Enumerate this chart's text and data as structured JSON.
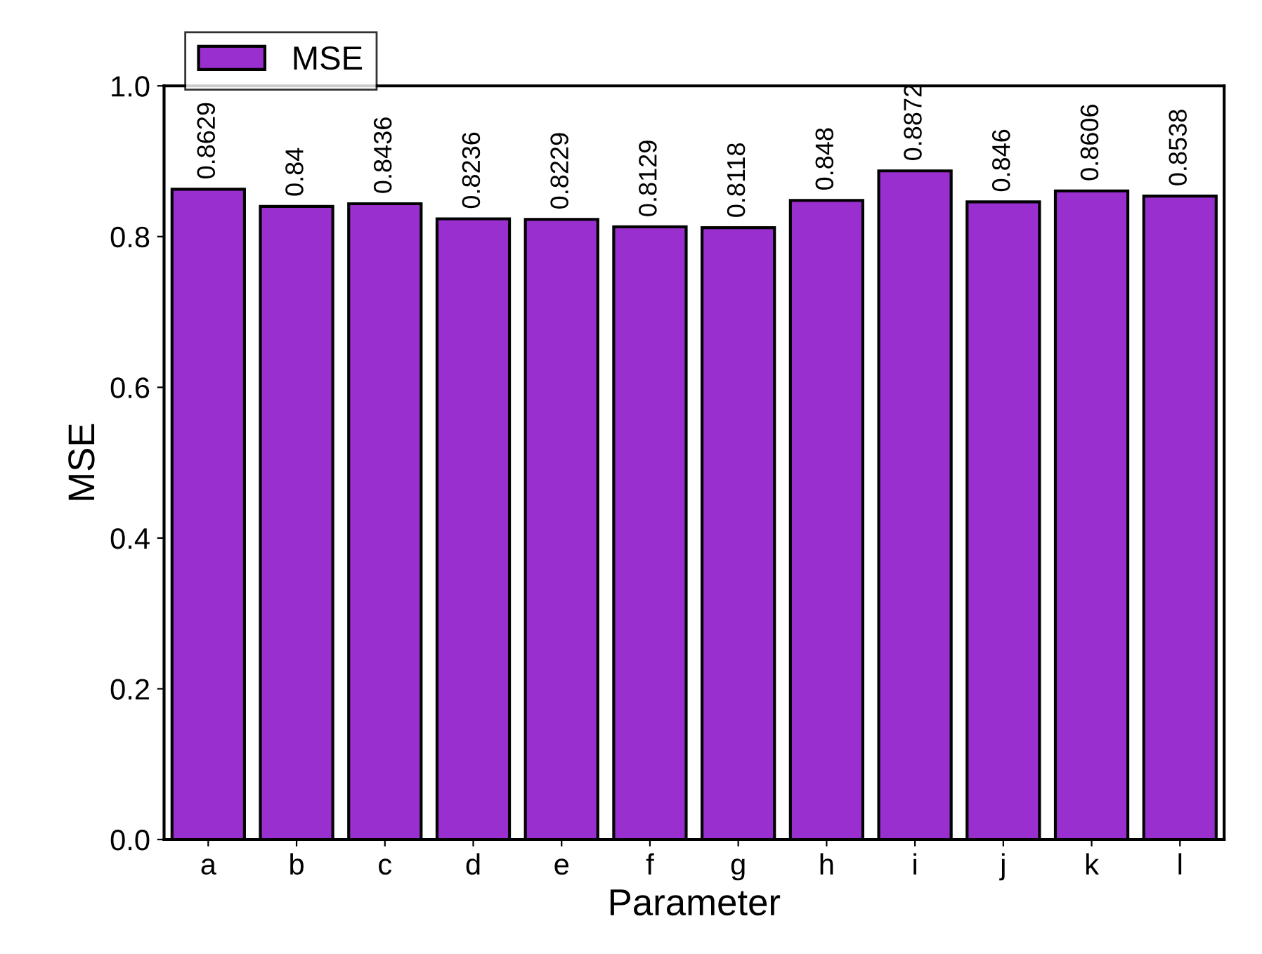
{
  "chart_data": {
    "type": "bar",
    "xlabel": "Parameter",
    "ylabel": "MSE",
    "categories": [
      "a",
      "b",
      "c",
      "d",
      "e",
      "f",
      "g",
      "h",
      "i",
      "j",
      "k",
      "l"
    ],
    "series": [
      {
        "name": "MSE",
        "color": "#9a2fd0",
        "values": [
          0.8629,
          0.84,
          0.8436,
          0.8236,
          0.8229,
          0.8129,
          0.8118,
          0.848,
          0.8872,
          0.846,
          0.8606,
          0.8538
        ]
      }
    ],
    "ylim": [
      0.0,
      1.0
    ],
    "yticks": [
      {
        "value": 0,
        "label": "0.0"
      },
      0.2,
      0.4,
      0.6,
      0.8,
      {
        "value": 1,
        "label": "1.0"
      }
    ],
    "data_labels": true,
    "legend": "top left",
    "grid": false
  }
}
